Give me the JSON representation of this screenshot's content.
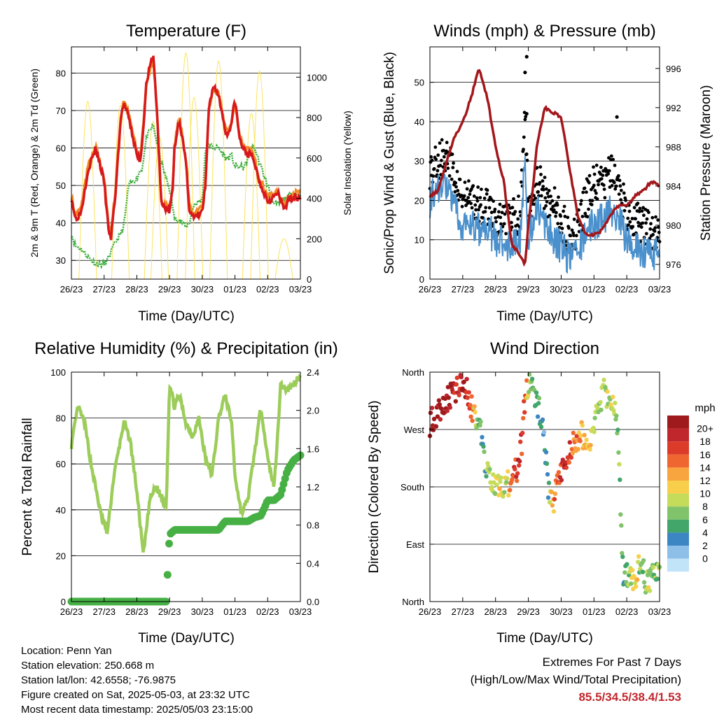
{
  "x_ticks": [
    "26/23",
    "27/23",
    "28/23",
    "29/23",
    "30/23",
    "01/23",
    "02/23",
    "03/23"
  ],
  "x_axis_label": "Time (Day/UTC)",
  "colors": {
    "temp_2m": "#d7191c",
    "temp_9m": "#f08a24",
    "dewpoint": "#3dae3d",
    "solar": "#fbe45c",
    "wind_sonic": "#4a90cc",
    "wind_gust": "#000000",
    "pressure": "#a3171c",
    "rh": "#9ccc5a",
    "precip": "#46b045",
    "extremes_text": "#c0272d"
  },
  "chart_data": [
    {
      "type": "line",
      "title": "Temperature (F)",
      "xlabel": "Time (Day/UTC)",
      "ylabel": "2m & 9m T (Red, Orange) & 2m Td (Green)",
      "ylabel_right": "Solar Insolation (Yellow)",
      "ylim": [
        25,
        87
      ],
      "ylim_right": [
        0,
        1150
      ],
      "yticks": [
        "30",
        "40",
        "50",
        "60",
        "70",
        "80"
      ],
      "yticks_right": [
        "0",
        "200",
        "400",
        "600",
        "800",
        "1000"
      ],
      "x": [
        0,
        0.12,
        0.3,
        0.5,
        0.75,
        1.0,
        1.1,
        1.2,
        1.35,
        1.5,
        1.6,
        1.75,
        2.0,
        2.1,
        2.15,
        2.3,
        2.5,
        2.6,
        2.75,
        3.0,
        3.1,
        3.15,
        3.3,
        3.5,
        3.6,
        3.75,
        4.0,
        4.1,
        4.2,
        4.35,
        4.5,
        4.75,
        4.9,
        5.0,
        5.15,
        5.3,
        5.5,
        5.6,
        5.75,
        6.0,
        6.2,
        6.3,
        6.5,
        6.75,
        7.0
      ],
      "series": [
        {
          "name": "2m T",
          "values": [
            47,
            41,
            43,
            54,
            60,
            51,
            41,
            35,
            48,
            67,
            72,
            68,
            58,
            57,
            60,
            78,
            85,
            72,
            45,
            43,
            49,
            60,
            68,
            56,
            44,
            41,
            43,
            50,
            70,
            77,
            74,
            63,
            67,
            73,
            62,
            59,
            58,
            56,
            51,
            46,
            47,
            48,
            44,
            47,
            47
          ]
        },
        {
          "name": "9m T",
          "values": [
            47,
            42,
            44,
            55,
            60,
            52,
            42,
            37,
            49,
            68,
            73,
            69,
            59,
            58,
            61,
            78,
            84,
            72,
            46,
            44,
            50,
            61,
            68,
            57,
            45,
            42,
            44,
            51,
            70,
            76,
            74,
            64,
            67,
            72,
            63,
            60,
            59,
            57,
            52,
            47,
            48,
            48,
            45,
            48,
            48
          ]
        },
        {
          "name": "2m Td",
          "values": [
            37,
            34,
            33,
            31,
            29,
            29,
            30,
            32,
            35,
            37,
            39,
            50,
            52,
            54,
            54,
            63,
            66,
            62,
            56,
            49,
            44,
            41,
            41,
            39,
            40,
            45,
            46,
            60,
            61,
            60,
            60,
            57,
            58,
            55,
            55,
            55,
            60,
            60,
            56,
            50,
            45,
            45,
            46,
            48,
            47
          ]
        }
      ],
      "solar": {
        "peak_days": [
          0.5,
          1.5,
          2.5,
          2.7,
          3.5,
          3.75,
          4.5,
          5.5,
          5.75,
          6.5
        ],
        "peaks": [
          880,
          860,
          780,
          700,
          1120,
          900,
          1080,
          820,
          1030,
          200
        ]
      }
    },
    {
      "type": "scatter",
      "title": "Winds (mph) & Pressure (mb)",
      "xlabel": "Time (Day/UTC)",
      "ylabel": "Sonic/Prop Wind & Gust (Blue, Black)",
      "ylabel_right": "Station Pressure (Maroon)",
      "ylim": [
        0,
        59
      ],
      "ylim_right": [
        974.5,
        998.2
      ],
      "yticks": [
        "0",
        "10",
        "20",
        "30",
        "40",
        "50"
      ],
      "yticks_right": [
        "976",
        "980",
        "984",
        "988",
        "992",
        "996"
      ],
      "wind_x": [
        0,
        0.25,
        0.5,
        0.75,
        1.0,
        1.25,
        1.5,
        1.75,
        2.0,
        2.25,
        2.5,
        2.75,
        2.9,
        3.0,
        3.15,
        3.25,
        3.5,
        3.75,
        4.0,
        4.2,
        4.5,
        4.75,
        5.0,
        5.25,
        5.5,
        5.75,
        6.0,
        6.25,
        6.5,
        6.75,
        7.0
      ],
      "series": [
        {
          "name": "Sonic/Prop Wind",
          "values": [
            20,
            24,
            23,
            18,
            13,
            14,
            12,
            13,
            10,
            9,
            9,
            10,
            30,
            11,
            14,
            18,
            13,
            11,
            8,
            6,
            6,
            12,
            14,
            15,
            18,
            16,
            10,
            8,
            7,
            6,
            6
          ]
        },
        {
          "name": "Gust",
          "values": [
            28,
            30,
            32,
            26,
            20,
            21,
            18,
            19,
            16,
            14,
            15,
            17,
            42,
            18,
            22,
            26,
            22,
            19,
            15,
            12,
            12,
            20,
            24,
            24,
            27,
            24,
            17,
            15,
            14,
            12,
            12
          ]
        },
        {
          "name": "Pressure",
          "values": [
            983.0,
            983.5,
            986.5,
            989.0,
            990.5,
            993.0,
            996.0,
            993.0,
            988.0,
            984.5,
            978.0,
            977.0,
            976.0,
            980.0,
            984.0,
            988.0,
            992.0,
            991.5,
            991.0,
            987.0,
            981.0,
            979.0,
            979.0,
            979.5,
            981.0,
            982.0,
            982.0,
            983.0,
            983.5,
            984.5,
            984.0
          ]
        }
      ],
      "gust_outliers": [
        {
          "x": 2.95,
          "y": 56.5
        },
        {
          "x": 2.9,
          "y": 52.5
        },
        {
          "x": 2.95,
          "y": 42.0
        },
        {
          "x": 5.7,
          "y": 41.2
        }
      ]
    },
    {
      "type": "line",
      "title": "Relative Humidity (%) & Precipitation (in)",
      "xlabel": "Time (Day/UTC)",
      "ylabel": "Percent & Total Rainfall",
      "ylim": [
        0,
        100
      ],
      "ylim_right": [
        0,
        2.4
      ],
      "yticks": [
        "0",
        "20",
        "40",
        "60",
        "80",
        "100"
      ],
      "yticks_right": [
        "0.0",
        "0.4",
        "0.8",
        "1.2",
        "1.6",
        "2.0",
        "2.4"
      ],
      "x": [
        0,
        0.2,
        0.4,
        0.6,
        0.9,
        1.1,
        1.3,
        1.6,
        1.8,
        2.0,
        2.2,
        2.4,
        2.6,
        2.8,
        2.9,
        3.0,
        3.15,
        3.3,
        3.5,
        3.7,
        3.9,
        4.1,
        4.3,
        4.5,
        4.7,
        4.9,
        5.0,
        5.2,
        5.4,
        5.6,
        5.8,
        6.0,
        6.2,
        6.4,
        6.6,
        6.8,
        7.0
      ],
      "series": [
        {
          "name": "RH",
          "values": [
            68,
            85,
            78,
            60,
            38,
            30,
            55,
            78,
            70,
            48,
            20,
            45,
            50,
            44,
            42,
            95,
            85,
            90,
            78,
            72,
            80,
            62,
            55,
            80,
            90,
            78,
            55,
            38,
            45,
            65,
            85,
            62,
            50,
            95,
            92,
            95,
            99
          ]
        },
        {
          "name": "Precipitation",
          "values": [
            0,
            0,
            0,
            0,
            0,
            0,
            0,
            0,
            0,
            0,
            0,
            0,
            0,
            0,
            0,
            0.7,
            0.75,
            0.75,
            0.75,
            0.75,
            0.75,
            0.75,
            0.75,
            0.75,
            0.84,
            0.84,
            0.84,
            0.84,
            0.84,
            0.88,
            0.9,
            1.06,
            1.06,
            1.12,
            1.37,
            1.48,
            1.53
          ]
        }
      ]
    },
    {
      "type": "scatter",
      "title": "Wind Direction",
      "xlabel": "Time (Day/UTC)",
      "ylabel": "Direction (Colored By Speed)",
      "yticks": [
        "North",
        "East",
        "South",
        "West",
        "North"
      ],
      "ylim": [
        0,
        360
      ],
      "x": [
        0,
        0.3,
        0.6,
        0.9,
        1.1,
        1.3,
        1.5,
        1.6,
        1.75,
        1.9,
        2.1,
        2.3,
        2.5,
        2.7,
        2.8,
        2.9,
        3.0,
        3.2,
        3.4,
        3.5,
        3.6,
        3.75,
        3.9,
        4.0,
        4.1,
        4.2,
        4.4,
        4.6,
        4.8,
        5.0,
        5.3,
        5.5,
        5.7,
        5.9,
        6.0,
        6.2,
        6.3,
        6.4,
        6.5,
        6.6,
        6.7,
        6.9,
        7.0
      ],
      "series": [
        {
          "name": "direction",
          "values": [
            280,
            300,
            320,
            335,
            340,
            300,
            280,
            245,
            200,
            180,
            178,
            182,
            190,
            215,
            250,
            320,
            345,
            325,
            290,
            240,
            180,
            150,
            200,
            200,
            215,
            230,
            250,
            265,
            240,
            280,
            330,
            320,
            290,
            30,
            45,
            30,
            40,
            60,
            50,
            25,
            35,
            45,
            40
          ]
        },
        {
          "name": "speed",
          "values": [
            20,
            20,
            20,
            18,
            18,
            12,
            6,
            4,
            6,
            8,
            10,
            8,
            14,
            18,
            16,
            14,
            8,
            4,
            4,
            2,
            4,
            12,
            14,
            16,
            18,
            16,
            14,
            12,
            10,
            8,
            6,
            8,
            6,
            4,
            6,
            8,
            10,
            6,
            4,
            6,
            8,
            6,
            8
          ]
        }
      ],
      "colorbar": {
        "title": "mph",
        "labels": [
          "20+",
          "18",
          "16",
          "14",
          "12",
          "10",
          "8",
          "6",
          "4",
          "2",
          "0"
        ],
        "colors": [
          "#9e1a1d",
          "#c0272d",
          "#dc3b2a",
          "#ef6630",
          "#f8a43f",
          "#f7cf4b",
          "#c5dc5a",
          "#80c36a",
          "#42a56a",
          "#3d86c4",
          "#8dbfe8",
          "#c2e4f8"
        ]
      }
    }
  ],
  "info": {
    "location": "Location: Penn Yan",
    "elevation": "Station elevation: 250.668 m",
    "latlon": "Station lat/lon: 42.6558; -76.9875",
    "created": "Figure created on Sat, 2025-05-03, at 23:32 UTC",
    "recent": "Most recent data timestamp: 2025/05/03 23:15:00"
  },
  "extremes": {
    "title": "Extremes For Past 7 Days",
    "subtitle": "(High/Low/Max Wind/Total Precipitation)",
    "values": "85.5/34.5/38.4/1.53"
  }
}
